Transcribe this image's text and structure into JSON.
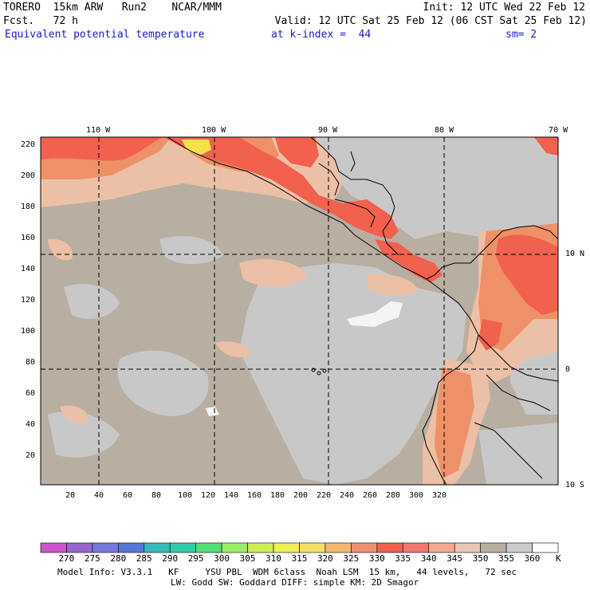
{
  "header": {
    "model": "TORERO  15km ARW   Run2    NCAR/MMM",
    "init": "Init: 12 UTC Wed 22 Feb 12",
    "fcst": "Fcst.   72 h",
    "valid": "Valid: 12 UTC Sat 25 Feb 12 (06 CST Sat 25 Feb 12)",
    "field": "Equivalent potential temperature",
    "level": "at k-index =  44",
    "smooth": "sm= 2"
  },
  "map": {
    "lon_labels": [
      "110 W",
      "100 W",
      "90 W",
      "80 W",
      "70 W"
    ],
    "lat_labels": [
      "10 N",
      "0",
      "10 S"
    ],
    "x_ticks": [
      "20",
      "40",
      "60",
      "80",
      "100",
      "120",
      "140",
      "160",
      "180",
      "200",
      "220",
      "240",
      "260",
      "280",
      "300",
      "320"
    ],
    "y_ticks": [
      "220",
      "200",
      "180",
      "160",
      "140",
      "120",
      "100",
      "80",
      "60",
      "40",
      "20"
    ],
    "colors": {
      "background": "#b9aea2",
      "gray": "#c8c8c8",
      "peach": "#ecc0a6",
      "salmon": "#f3a083",
      "orange": "#ee9068",
      "red": "#f2604e",
      "yellow": "#f5e04a",
      "white": "#f4f4f4"
    }
  },
  "colorbar": {
    "unit": "K",
    "labels": [
      "270",
      "275",
      "280",
      "285",
      "290",
      "295",
      "300",
      "305",
      "310",
      "315",
      "320",
      "325",
      "330",
      "335",
      "340",
      "345",
      "350",
      "355",
      "360"
    ],
    "colors": [
      "#cc55cc",
      "#9966cc",
      "#7777e0",
      "#5577dd",
      "#33bbbb",
      "#33ccaa",
      "#55dd77",
      "#99ee66",
      "#ccee55",
      "#eeee55",
      "#f5dd66",
      "#f5b870",
      "#f09070",
      "#f06050",
      "#f07870",
      "#f2aa90",
      "#e8c8b0",
      "#b9aea2",
      "#cccccc",
      "#ffffff"
    ]
  },
  "footer": {
    "line1": "Model Info: V3.3.1   KF     YSU PBL  WDM 6class  Noah LSM  15 km,   44 levels,   72 sec",
    "line2": "LW: Godd SW: Goddard DIFF: simple KM: 2D Smagor"
  }
}
